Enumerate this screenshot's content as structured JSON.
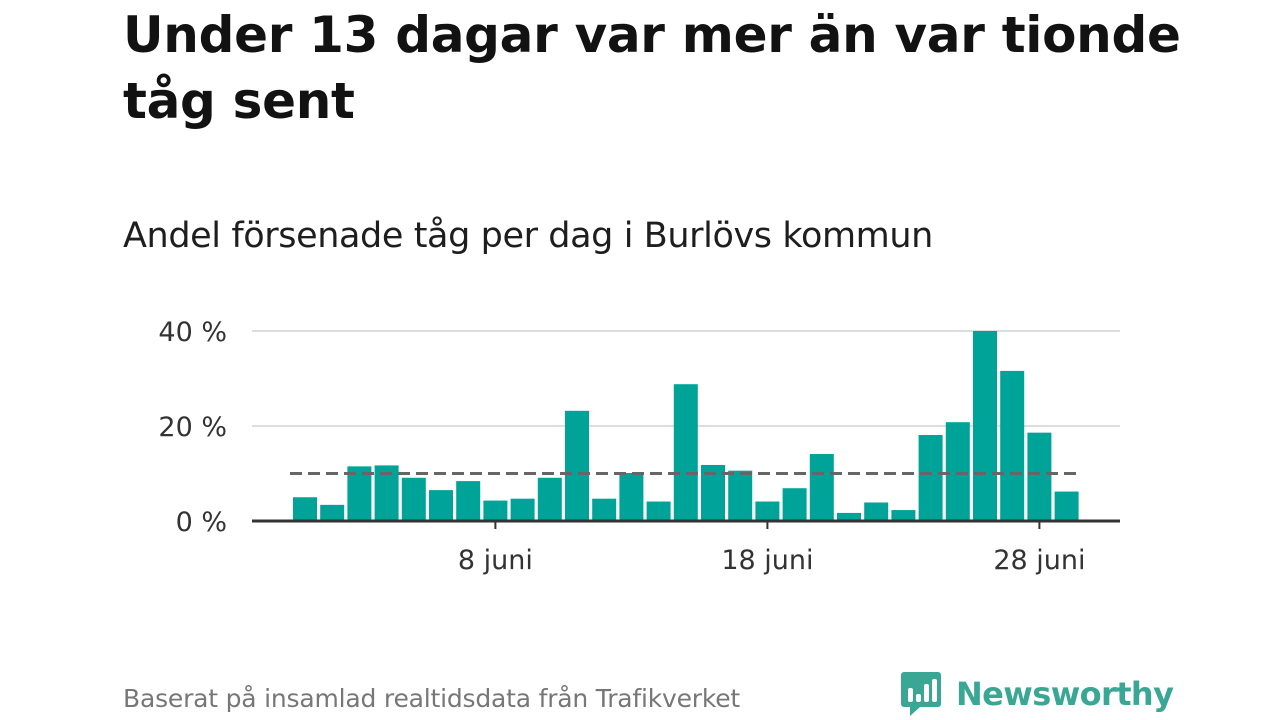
{
  "header": {
    "title": "Under 13 dagar var mer än var tionde tåg sent",
    "subtitle": "Andel försenade tåg per dag i Burlövs kommun"
  },
  "footer": {
    "source": "Baserat på insamlad realtidsdata från Trafikverket",
    "brand": "Newsworthy"
  },
  "colors": {
    "bar": "#00a398",
    "reference_line": "#666666",
    "grid": "#dddddd",
    "axis": "#333333",
    "brand": "#3aa795"
  },
  "icons": {
    "brand_logo": "newsworthy-logo-icon"
  },
  "chart_data": {
    "type": "bar",
    "x_type": "date",
    "x": [
      "2021-06-01",
      "2021-06-02",
      "2021-06-03",
      "2021-06-04",
      "2021-06-05",
      "2021-06-06",
      "2021-06-07",
      "2021-06-08",
      "2021-06-09",
      "2021-06-10",
      "2021-06-11",
      "2021-06-12",
      "2021-06-13",
      "2021-06-14",
      "2021-06-15",
      "2021-06-16",
      "2021-06-17",
      "2021-06-18",
      "2021-06-19",
      "2021-06-20",
      "2021-06-21",
      "2021-06-22",
      "2021-06-23",
      "2021-06-24",
      "2021-06-25",
      "2021-06-26",
      "2021-06-27",
      "2021-06-28",
      "2021-06-29"
    ],
    "values": [
      5.0,
      3.4,
      11.5,
      11.7,
      9.1,
      6.5,
      8.4,
      4.3,
      4.7,
      9.1,
      23.2,
      4.7,
      10.1,
      4.1,
      28.8,
      11.8,
      10.6,
      4.1,
      6.9,
      14.1,
      1.7,
      3.9,
      2.3,
      18.1,
      20.8,
      40.0,
      31.6,
      18.6,
      6.2
    ],
    "reference_line": 10,
    "ylim": [
      0,
      42
    ],
    "y_ticks": [
      {
        "value": 0,
        "label": "0 %"
      },
      {
        "value": 20,
        "label": "20 %"
      },
      {
        "value": 40,
        "label": "40 %"
      }
    ],
    "x_ticks": [
      {
        "value": "2021-06-08",
        "label": "8 juni"
      },
      {
        "value": "2021-06-18",
        "label": "18 juni"
      },
      {
        "value": "2021-06-28",
        "label": "28 juni"
      }
    ],
    "grid": true,
    "legend": false
  }
}
